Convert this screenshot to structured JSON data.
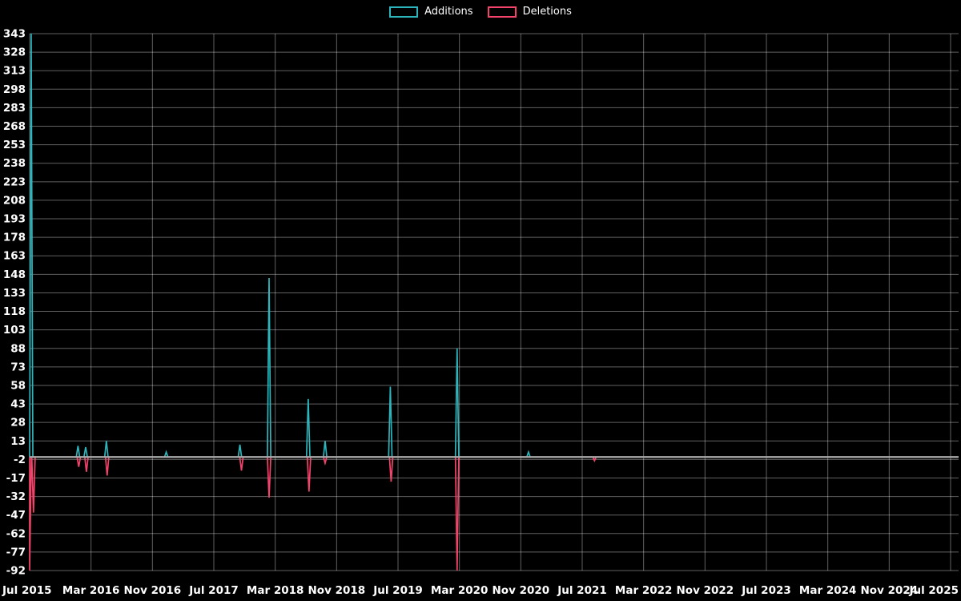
{
  "legend": {
    "additions": "Additions",
    "deletions": "Deletions"
  },
  "colors": {
    "additions": "#2cb5bd",
    "deletions": "#f2436b",
    "grid": "rgba(255,255,255,0.38)",
    "zero_line": "#a8a8a8",
    "text": "#ffffff",
    "background": "#000000"
  },
  "chart_data": {
    "type": "line",
    "title": "",
    "xlabel": "",
    "ylabel": "",
    "legend_position": "top-center",
    "grid": true,
    "x_range_months": [
      0,
      120
    ],
    "x_tick_labels": [
      "Jul 2015",
      "Mar 2016",
      "Nov 2016",
      "Jul 2017",
      "Mar 2018",
      "Nov 2018",
      "Jul 2019",
      "Mar 2020",
      "Nov 2020",
      "Jul 2021",
      "Mar 2022",
      "Nov 2022",
      "Jul 2023",
      "Mar 2024",
      "Nov 2024",
      "Jul 2025"
    ],
    "y_ticks": [
      343,
      328,
      313,
      298,
      283,
      268,
      253,
      238,
      223,
      208,
      193,
      178,
      163,
      148,
      133,
      118,
      103,
      88,
      73,
      58,
      43,
      28,
      13,
      -2,
      -17,
      -32,
      -47,
      -62,
      -77,
      -92
    ],
    "ylim": [
      -92,
      343
    ],
    "baseline": 0,
    "series": [
      {
        "name": "Additions",
        "color_key": "additions",
        "note": "spikes are [months_after_Jul_2015, value]; series sits at 0 elsewhere",
        "spikes": [
          [
            0.2,
            343
          ],
          [
            6.3,
            9
          ],
          [
            7.3,
            8
          ],
          [
            10.0,
            13
          ],
          [
            17.8,
            4
          ],
          [
            27.4,
            10
          ],
          [
            31.2,
            145
          ],
          [
            36.3,
            47
          ],
          [
            38.5,
            13
          ],
          [
            47.0,
            57
          ],
          [
            55.7,
            88
          ],
          [
            65.0,
            4
          ]
        ]
      },
      {
        "name": "Deletions",
        "color_key": "deletions",
        "note": "spikes are [months_after_Jul_2015, value]; series sits at 0 elsewhere",
        "spikes": [
          [
            0.0,
            -92
          ],
          [
            0.5,
            -45
          ],
          [
            6.4,
            -8
          ],
          [
            7.4,
            -12
          ],
          [
            10.1,
            -15
          ],
          [
            27.6,
            -11
          ],
          [
            31.2,
            -33
          ],
          [
            36.4,
            -28
          ],
          [
            38.5,
            -5
          ],
          [
            47.1,
            -20
          ],
          [
            55.7,
            -92
          ],
          [
            73.6,
            -3
          ]
        ]
      }
    ]
  }
}
